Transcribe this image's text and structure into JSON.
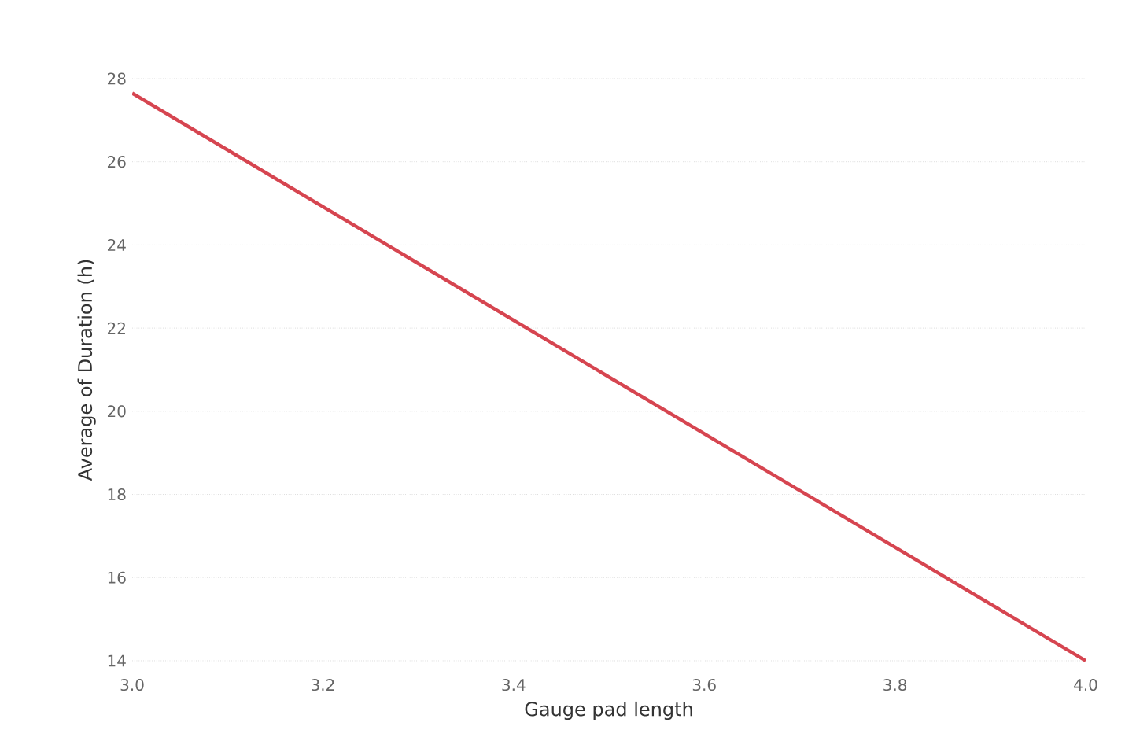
{
  "chart_data": {
    "type": "line",
    "xlabel": "Gauge pad length",
    "ylabel": "Average of Duration (h)",
    "x": [
      3.0,
      4.0
    ],
    "series": [
      {
        "color": "#d64550",
        "values": [
          27.65,
          14.0
        ]
      }
    ],
    "xlim": [
      3.0,
      4.0
    ],
    "ylim": [
      14,
      28
    ],
    "xticks": [
      {
        "value": 3.0,
        "label": "3.0"
      },
      {
        "value": 3.2,
        "label": "3.2"
      },
      {
        "value": 3.4,
        "label": "3.4"
      },
      {
        "value": 3.6,
        "label": "3.6"
      },
      {
        "value": 3.8,
        "label": "3.8"
      },
      {
        "value": 4.0,
        "label": "4.0"
      }
    ],
    "yticks": [
      14,
      16,
      18,
      20,
      22,
      24,
      26,
      28
    ],
    "grid": "y",
    "marker": "none",
    "line_style": "solid"
  }
}
